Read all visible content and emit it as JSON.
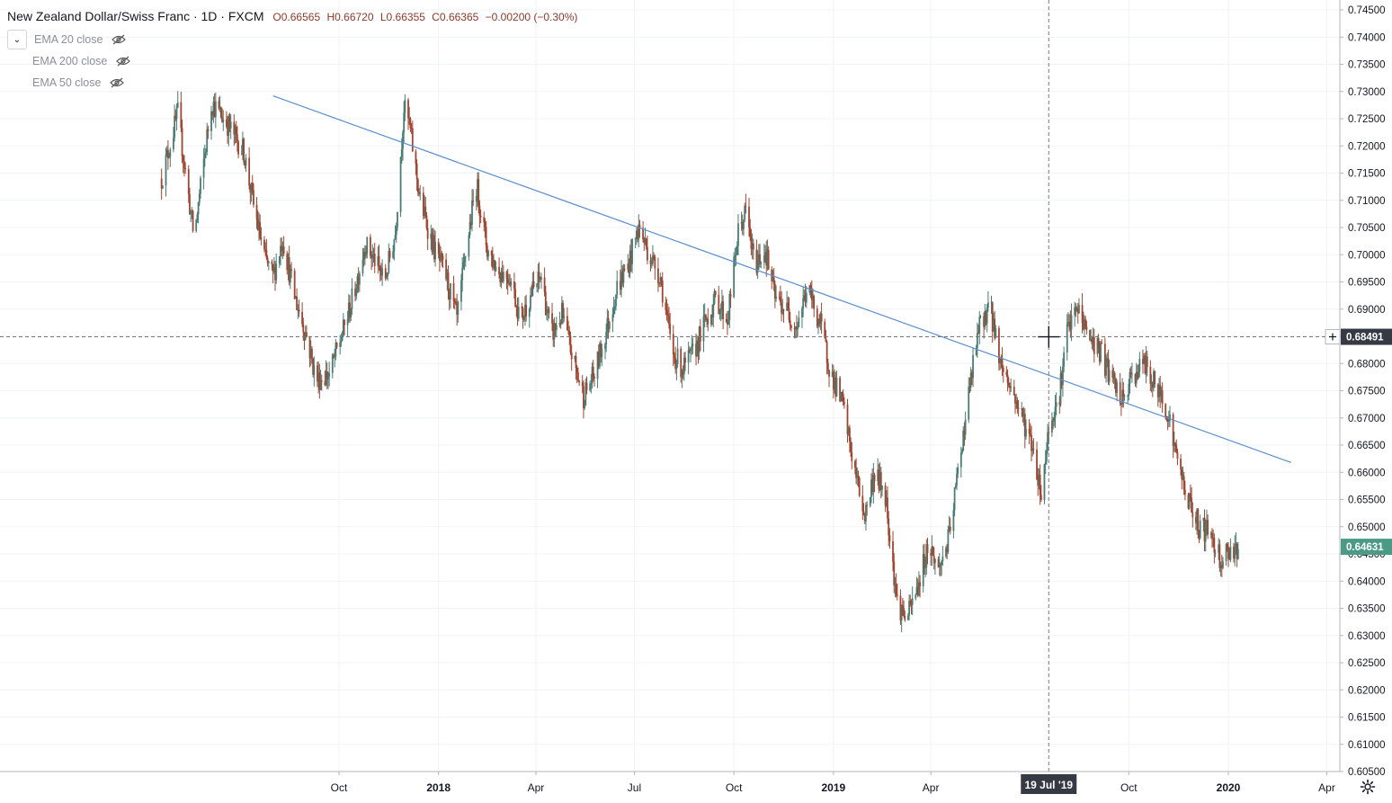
{
  "header": {
    "symbol": "New Zealand Dollar/Swiss Franc · 1D · FXCM",
    "open": "O0.66565",
    "high": "H0.66720",
    "low": "L0.66355",
    "close": "C0.66365",
    "change": "−0.00200 (−0.30%)"
  },
  "indicators": [
    {
      "label": "EMA 20 close",
      "icon": "eye-off-icon"
    },
    {
      "label": "EMA 200 close",
      "icon": "eye-off-icon"
    },
    {
      "label": "EMA 50 close",
      "icon": "eye-off-icon"
    }
  ],
  "colors": {
    "up": "#4a7c73",
    "down": "#a0452f",
    "trendline": "#5b8fd0",
    "crosshair_tag": "#363a45",
    "last_price_tag": "#4a9a86",
    "grid": "#f0f3fa"
  },
  "chart_data": {
    "type": "candlestick",
    "ylim": [
      0.605,
      0.746
    ],
    "y_ticks": [
      "0.74500",
      "0.74000",
      "0.73500",
      "0.73000",
      "0.72500",
      "0.72000",
      "0.71500",
      "0.71000",
      "0.70500",
      "0.70000",
      "0.69500",
      "0.69000",
      "0.68500",
      "0.68000",
      "0.67500",
      "0.67000",
      "0.66500",
      "0.66000",
      "0.65500",
      "0.65000",
      "0.64500",
      "0.64000",
      "0.63500",
      "0.63000",
      "0.62500",
      "0.62000",
      "0.61500",
      "0.61000",
      "0.60500"
    ],
    "x_ticks": [
      {
        "label": "Oct",
        "date": "2017-10-01"
      },
      {
        "label": "2018",
        "date": "2018-01-01"
      },
      {
        "label": "Apr",
        "date": "2018-04-01"
      },
      {
        "label": "Jul",
        "date": "2018-07-01"
      },
      {
        "label": "Oct",
        "date": "2018-10-01"
      },
      {
        "label": "2019",
        "date": "2019-01-01"
      },
      {
        "label": "Apr",
        "date": "2019-04-01"
      },
      {
        "label": "Oct",
        "date": "2019-10-01"
      },
      {
        "label": "2020",
        "date": "2020-01-01"
      },
      {
        "label": "Apr",
        "date": "2020-04-01"
      }
    ],
    "crosshair": {
      "date": "2019-07-19",
      "date_label": "19 Jul '19",
      "price": 0.68491,
      "price_label": "0.68491"
    },
    "last_price": {
      "value": 0.64631,
      "label": "0.64631"
    },
    "trendline": {
      "start": {
        "date": "2017-08-01",
        "price": 0.7292
      },
      "end": {
        "date": "2020-02-28",
        "price": 0.6618
      }
    },
    "path": [
      [
        "2017-04-20",
        0.714
      ],
      [
        "2017-05-05",
        0.726
      ],
      [
        "2017-05-20",
        0.703
      ],
      [
        "2017-06-05",
        0.728
      ],
      [
        "2017-06-20",
        0.724
      ],
      [
        "2017-07-05",
        0.719
      ],
      [
        "2017-07-15",
        0.708
      ],
      [
        "2017-07-25",
        0.699
      ],
      [
        "2017-08-01",
        0.696
      ],
      [
        "2017-08-10",
        0.703
      ],
      [
        "2017-08-20",
        0.693
      ],
      [
        "2017-09-01",
        0.685
      ],
      [
        "2017-09-10",
        0.677
      ],
      [
        "2017-09-22",
        0.678
      ],
      [
        "2017-10-05",
        0.686
      ],
      [
        "2017-10-15",
        0.693
      ],
      [
        "2017-10-25",
        0.702
      ],
      [
        "2017-11-03",
        0.699
      ],
      [
        "2017-11-12",
        0.695
      ],
      [
        "2017-11-22",
        0.704
      ],
      [
        "2017-11-30",
        0.727
      ],
      [
        "2017-12-05",
        0.724
      ],
      [
        "2017-12-15",
        0.71
      ],
      [
        "2017-12-28",
        0.701
      ],
      [
        "2018-01-08",
        0.696
      ],
      [
        "2018-01-18",
        0.688
      ],
      [
        "2018-01-28",
        0.703
      ],
      [
        "2018-02-05",
        0.713
      ],
      [
        "2018-02-15",
        0.701
      ],
      [
        "2018-02-25",
        0.697
      ],
      [
        "2018-03-08",
        0.696
      ],
      [
        "2018-03-18",
        0.688
      ],
      [
        "2018-03-28",
        0.693
      ],
      [
        "2018-04-06",
        0.696
      ],
      [
        "2018-04-15",
        0.685
      ],
      [
        "2018-04-25",
        0.689
      ],
      [
        "2018-05-05",
        0.681
      ],
      [
        "2018-05-15",
        0.674
      ],
      [
        "2018-05-25",
        0.678
      ],
      [
        "2018-06-05",
        0.686
      ],
      [
        "2018-06-15",
        0.694
      ],
      [
        "2018-06-25",
        0.698
      ],
      [
        "2018-07-05",
        0.705
      ],
      [
        "2018-07-15",
        0.7
      ],
      [
        "2018-07-25",
        0.696
      ],
      [
        "2018-08-05",
        0.682
      ],
      [
        "2018-08-15",
        0.679
      ],
      [
        "2018-08-25",
        0.682
      ],
      [
        "2018-09-05",
        0.688
      ],
      [
        "2018-09-15",
        0.692
      ],
      [
        "2018-09-25",
        0.688
      ],
      [
        "2018-10-05",
        0.704
      ],
      [
        "2018-10-12",
        0.708
      ],
      [
        "2018-10-20",
        0.698
      ],
      [
        "2018-10-30",
        0.701
      ],
      [
        "2018-11-08",
        0.692
      ],
      [
        "2018-11-18",
        0.69
      ],
      [
        "2018-11-28",
        0.687
      ],
      [
        "2018-12-08",
        0.694
      ],
      [
        "2018-12-20",
        0.687
      ],
      [
        "2018-12-30",
        0.678
      ],
      [
        "2019-01-10",
        0.672
      ],
      [
        "2019-01-20",
        0.661
      ],
      [
        "2019-01-30",
        0.652
      ],
      [
        "2019-02-08",
        0.66
      ],
      [
        "2019-02-18",
        0.656
      ],
      [
        "2019-03-01",
        0.636
      ],
      [
        "2019-03-10",
        0.633
      ],
      [
        "2019-03-20",
        0.639
      ],
      [
        "2019-03-30",
        0.647
      ],
      [
        "2019-04-08",
        0.642
      ],
      [
        "2019-04-18",
        0.648
      ],
      [
        "2019-04-28",
        0.663
      ],
      [
        "2019-05-08",
        0.677
      ],
      [
        "2019-05-15",
        0.686
      ],
      [
        "2019-05-25",
        0.691
      ],
      [
        "2019-06-05",
        0.68
      ],
      [
        "2019-06-15",
        0.675
      ],
      [
        "2019-06-25",
        0.67
      ],
      [
        "2019-07-05",
        0.664
      ],
      [
        "2019-07-12",
        0.656
      ],
      [
        "2019-07-20",
        0.67
      ],
      [
        "2019-07-28",
        0.673
      ],
      [
        "2019-08-05",
        0.686
      ],
      [
        "2019-08-15",
        0.69
      ],
      [
        "2019-08-25",
        0.685
      ],
      [
        "2019-09-05",
        0.682
      ],
      [
        "2019-09-15",
        0.677
      ],
      [
        "2019-09-25",
        0.673
      ],
      [
        "2019-10-05",
        0.678
      ],
      [
        "2019-10-15",
        0.68
      ],
      [
        "2019-10-25",
        0.676
      ],
      [
        "2019-11-05",
        0.672
      ],
      [
        "2019-11-15",
        0.662
      ],
      [
        "2019-11-25",
        0.655
      ],
      [
        "2019-12-05",
        0.65
      ],
      [
        "2019-12-15",
        0.649
      ],
      [
        "2019-12-25",
        0.644
      ],
      [
        "2020-01-03",
        0.646
      ],
      [
        "2020-01-10",
        0.646
      ]
    ]
  }
}
